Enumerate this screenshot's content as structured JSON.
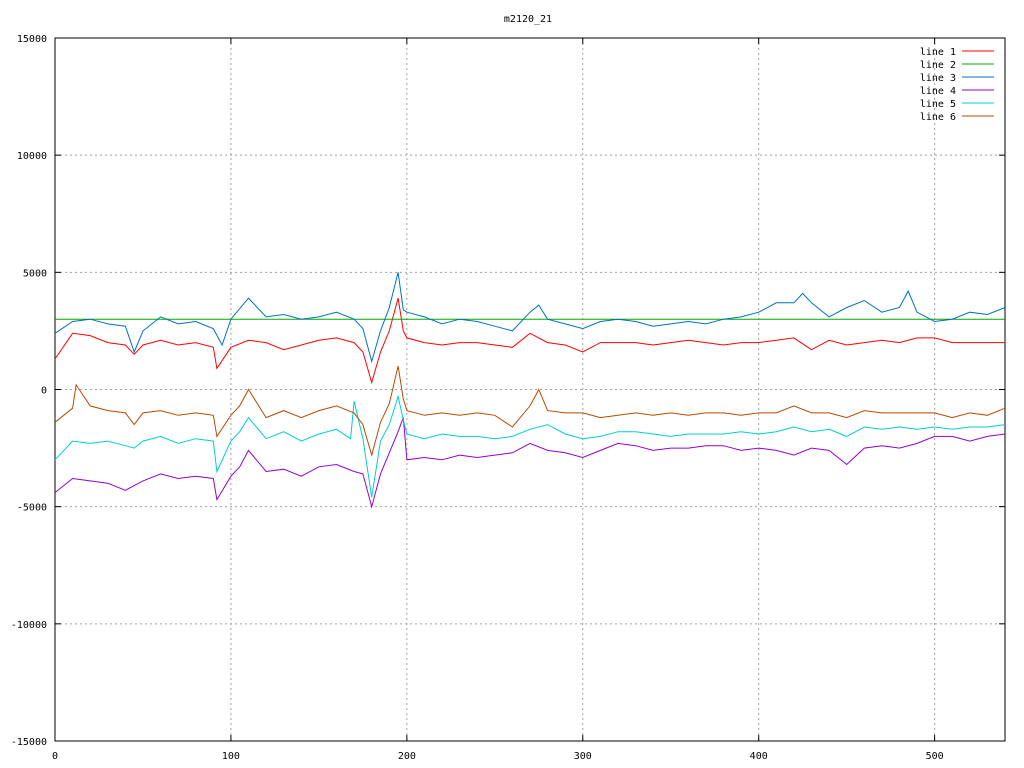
{
  "chart_data": {
    "type": "line",
    "title": "m2120_21",
    "xlabel": "",
    "ylabel": "",
    "xlim": [
      0,
      540
    ],
    "ylim": [
      -15000,
      15000
    ],
    "x_ticks": [
      0,
      100,
      200,
      300,
      400,
      500
    ],
    "y_ticks": [
      -15000,
      -10000,
      -5000,
      0,
      5000,
      10000,
      15000
    ],
    "grid": true,
    "legend_position": "top-right",
    "series": [
      {
        "name": "line 1",
        "color": "#ff0000",
        "x": [
          0,
          10,
          20,
          30,
          40,
          45,
          50,
          60,
          70,
          80,
          90,
          92,
          100,
          110,
          120,
          130,
          140,
          150,
          160,
          170,
          175,
          180,
          185,
          190,
          195,
          198,
          200,
          210,
          220,
          230,
          240,
          250,
          260,
          270,
          280,
          290,
          300,
          310,
          320,
          330,
          340,
          350,
          360,
          370,
          380,
          390,
          400,
          410,
          420,
          430,
          440,
          450,
          460,
          470,
          480,
          490,
          500,
          510,
          520,
          530,
          540
        ],
        "values": [
          1300,
          2400,
          2300,
          2000,
          1900,
          1500,
          1900,
          2100,
          1900,
          2000,
          1800,
          900,
          1800,
          2100,
          2000,
          1700,
          1900,
          2100,
          2200,
          2000,
          1600,
          300,
          1600,
          2500,
          3900,
          2500,
          2200,
          2000,
          1900,
          2000,
          2000,
          1900,
          1800,
          2400,
          2000,
          1900,
          1600,
          2000,
          2000,
          2000,
          1900,
          2000,
          2100,
          2000,
          1900,
          2000,
          2000,
          2100,
          2200,
          1700,
          2100,
          1900,
          2000,
          2100,
          2000,
          2200,
          2200,
          2000,
          2000,
          2000,
          2000
        ]
      },
      {
        "name": "line 2",
        "color": "#00aa00",
        "x": [
          0,
          540
        ],
        "values": [
          3000,
          3000
        ]
      },
      {
        "name": "line 3",
        "color": "#0072bd",
        "x": [
          0,
          10,
          20,
          30,
          40,
          45,
          50,
          60,
          70,
          80,
          90,
          95,
          100,
          110,
          120,
          130,
          140,
          150,
          160,
          170,
          175,
          180,
          185,
          190,
          195,
          198,
          200,
          210,
          220,
          230,
          240,
          250,
          260,
          270,
          275,
          280,
          290,
          300,
          310,
          320,
          330,
          340,
          350,
          360,
          370,
          380,
          390,
          400,
          410,
          420,
          425,
          430,
          440,
          450,
          460,
          470,
          480,
          485,
          490,
          500,
          510,
          520,
          530,
          540
        ],
        "values": [
          2400,
          2900,
          3000,
          2800,
          2700,
          1600,
          2500,
          3100,
          2800,
          2900,
          2600,
          1900,
          3000,
          3900,
          3100,
          3200,
          3000,
          3100,
          3300,
          3000,
          2600,
          1200,
          2500,
          3500,
          5000,
          3400,
          3300,
          3100,
          2800,
          3000,
          2900,
          2700,
          2500,
          3300,
          3600,
          3000,
          2800,
          2600,
          2900,
          3000,
          2900,
          2700,
          2800,
          2900,
          2800,
          3000,
          3100,
          3300,
          3700,
          3700,
          4100,
          3700,
          3100,
          3500,
          3800,
          3300,
          3500,
          4200,
          3300,
          2900,
          3000,
          3300,
          3200,
          3500
        ]
      },
      {
        "name": "line 4",
        "color": "#9400d3",
        "x": [
          0,
          10,
          20,
          30,
          40,
          45,
          50,
          60,
          70,
          80,
          90,
          92,
          100,
          105,
          110,
          120,
          130,
          140,
          150,
          160,
          170,
          175,
          180,
          185,
          190,
          195,
          198,
          200,
          210,
          220,
          230,
          240,
          250,
          260,
          270,
          280,
          290,
          300,
          310,
          320,
          330,
          340,
          350,
          360,
          370,
          380,
          390,
          400,
          410,
          420,
          430,
          440,
          450,
          460,
          470,
          480,
          490,
          500,
          510,
          520,
          530,
          540
        ],
        "values": [
          -4400,
          -3800,
          -3900,
          -4000,
          -4300,
          -4100,
          -3900,
          -3600,
          -3800,
          -3700,
          -3800,
          -4700,
          -3700,
          -3300,
          -2600,
          -3500,
          -3400,
          -3700,
          -3300,
          -3200,
          -3500,
          -3600,
          -5000,
          -3600,
          -2700,
          -1800,
          -1200,
          -3000,
          -2900,
          -3000,
          -2800,
          -2900,
          -2800,
          -2700,
          -2300,
          -2600,
          -2700,
          -2900,
          -2600,
          -2300,
          -2400,
          -2600,
          -2500,
          -2500,
          -2400,
          -2400,
          -2600,
          -2500,
          -2600,
          -2800,
          -2500,
          -2600,
          -3200,
          -2500,
          -2400,
          -2500,
          -2300,
          -2000,
          -2000,
          -2200,
          -2000,
          -1900
        ]
      },
      {
        "name": "line 5",
        "color": "#00ced1",
        "x": [
          0,
          10,
          20,
          30,
          40,
          45,
          50,
          60,
          70,
          80,
          90,
          92,
          100,
          105,
          110,
          120,
          130,
          140,
          150,
          160,
          168,
          170,
          175,
          180,
          185,
          190,
          195,
          198,
          200,
          210,
          220,
          230,
          240,
          250,
          260,
          270,
          280,
          290,
          300,
          310,
          320,
          330,
          340,
          350,
          360,
          370,
          380,
          390,
          400,
          410,
          420,
          430,
          440,
          450,
          460,
          470,
          480,
          490,
          500,
          510,
          520,
          530,
          540
        ],
        "values": [
          -3000,
          -2200,
          -2300,
          -2200,
          -2400,
          -2500,
          -2200,
          -2000,
          -2300,
          -2100,
          -2200,
          -3500,
          -2200,
          -1800,
          -1200,
          -2100,
          -1800,
          -2200,
          -1900,
          -1700,
          -2100,
          -500,
          -2100,
          -4600,
          -2200,
          -1500,
          -300,
          -1300,
          -1900,
          -2100,
          -1900,
          -2000,
          -2000,
          -2100,
          -2000,
          -1700,
          -1500,
          -1900,
          -2100,
          -2000,
          -1800,
          -1800,
          -1900,
          -2000,
          -1900,
          -1900,
          -1900,
          -1800,
          -1900,
          -1800,
          -1600,
          -1800,
          -1700,
          -2000,
          -1600,
          -1700,
          -1600,
          -1700,
          -1600,
          -1700,
          -1600,
          -1600,
          -1500
        ]
      },
      {
        "name": "line 6",
        "color": "#b84a00",
        "x": [
          0,
          10,
          12,
          20,
          30,
          40,
          45,
          50,
          60,
          70,
          80,
          90,
          92,
          100,
          105,
          110,
          120,
          130,
          140,
          150,
          160,
          170,
          175,
          180,
          185,
          190,
          195,
          198,
          200,
          210,
          220,
          230,
          240,
          250,
          260,
          270,
          275,
          280,
          290,
          300,
          310,
          320,
          330,
          340,
          350,
          360,
          370,
          380,
          390,
          400,
          410,
          420,
          430,
          440,
          450,
          460,
          470,
          480,
          490,
          500,
          510,
          520,
          530,
          540
        ],
        "values": [
          -1400,
          -800,
          200,
          -700,
          -900,
          -1000,
          -1500,
          -1000,
          -900,
          -1100,
          -1000,
          -1100,
          -2000,
          -1100,
          -700,
          0,
          -1200,
          -900,
          -1200,
          -900,
          -700,
          -1000,
          -1500,
          -2800,
          -1400,
          -600,
          1000,
          -400,
          -900,
          -1100,
          -1000,
          -1100,
          -1000,
          -1100,
          -1600,
          -700,
          0,
          -900,
          -1000,
          -1000,
          -1200,
          -1100,
          -1000,
          -1100,
          -1000,
          -1100,
          -1000,
          -1000,
          -1100,
          -1000,
          -1000,
          -700,
          -1000,
          -1000,
          -1200,
          -900,
          -1000,
          -1000,
          -1000,
          -1000,
          -1200,
          -1000,
          -1100,
          -800
        ]
      }
    ]
  }
}
